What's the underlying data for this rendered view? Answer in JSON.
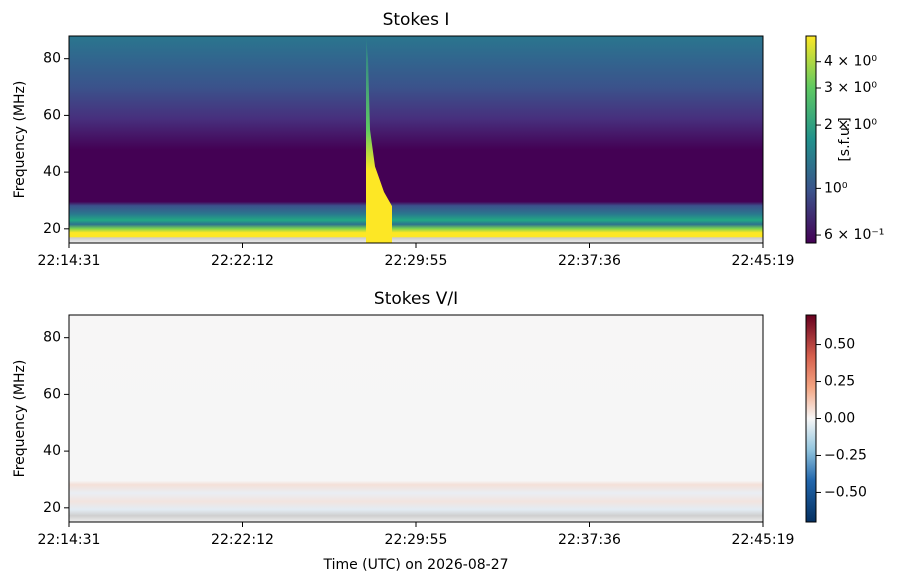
{
  "chart_data": [
    {
      "type": "spectrogram",
      "title": "Stokes I",
      "ylabel": "Frequency (MHz)",
      "ylim": [
        15,
        88
      ],
      "yticks": [
        20,
        40,
        60,
        80
      ],
      "xticks": [
        "22:14:31",
        "22:22:12",
        "22:29:55",
        "22:37:36",
        "22:45:19"
      ],
      "colorbar": {
        "scale": "log",
        "colormap": "viridis",
        "lim": [
          0.55,
          5.3
        ],
        "label": "[s.f.u.]",
        "ticks": [
          {
            "value": 0.6,
            "label": "6 × 10⁻¹"
          },
          {
            "value": 1,
            "label": "10⁰"
          },
          {
            "value": 2,
            "label": "2 × 10⁰"
          },
          {
            "value": 3,
            "label": "3 × 10⁰"
          },
          {
            "value": 4,
            "label": "4 × 10⁰"
          }
        ]
      }
    },
    {
      "type": "spectrogram",
      "title": "Stokes V/I",
      "ylabel": "Frequency (MHz)",
      "xlabel": "Time (UTC) on 2026-08-27",
      "ylim": [
        15,
        88
      ],
      "yticks": [
        20,
        40,
        60,
        80
      ],
      "xticks": [
        "22:14:31",
        "22:22:12",
        "22:29:55",
        "22:37:36",
        "22:45:19"
      ],
      "colorbar": {
        "scale": "linear",
        "colormap": "RdBu_r",
        "lim": [
          -0.7,
          0.7
        ],
        "ticks": [
          {
            "value": -0.5,
            "label": "−0.50"
          },
          {
            "value": -0.25,
            "label": "−0.25"
          },
          {
            "value": 0,
            "label": "0.00"
          },
          {
            "value": 0.25,
            "label": "0.25"
          },
          {
            "value": 0.5,
            "label": "0.50"
          }
        ]
      }
    }
  ]
}
